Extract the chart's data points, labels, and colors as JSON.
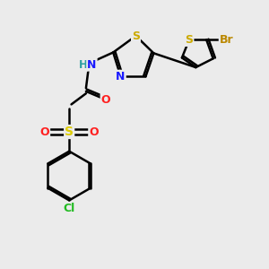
{
  "bg_color": "#ebebeb",
  "bond_color": "#000000",
  "bond_width": 1.8,
  "atom_colors": {
    "S": "#ccaa00",
    "N": "#1a1aff",
    "H": "#2aa0a0",
    "O": "#ff2020",
    "S_sulf": "#ddcc00",
    "Cl": "#22bb22",
    "Br": "#bb8800"
  },
  "figsize": [
    3.0,
    3.0
  ],
  "dpi": 100
}
